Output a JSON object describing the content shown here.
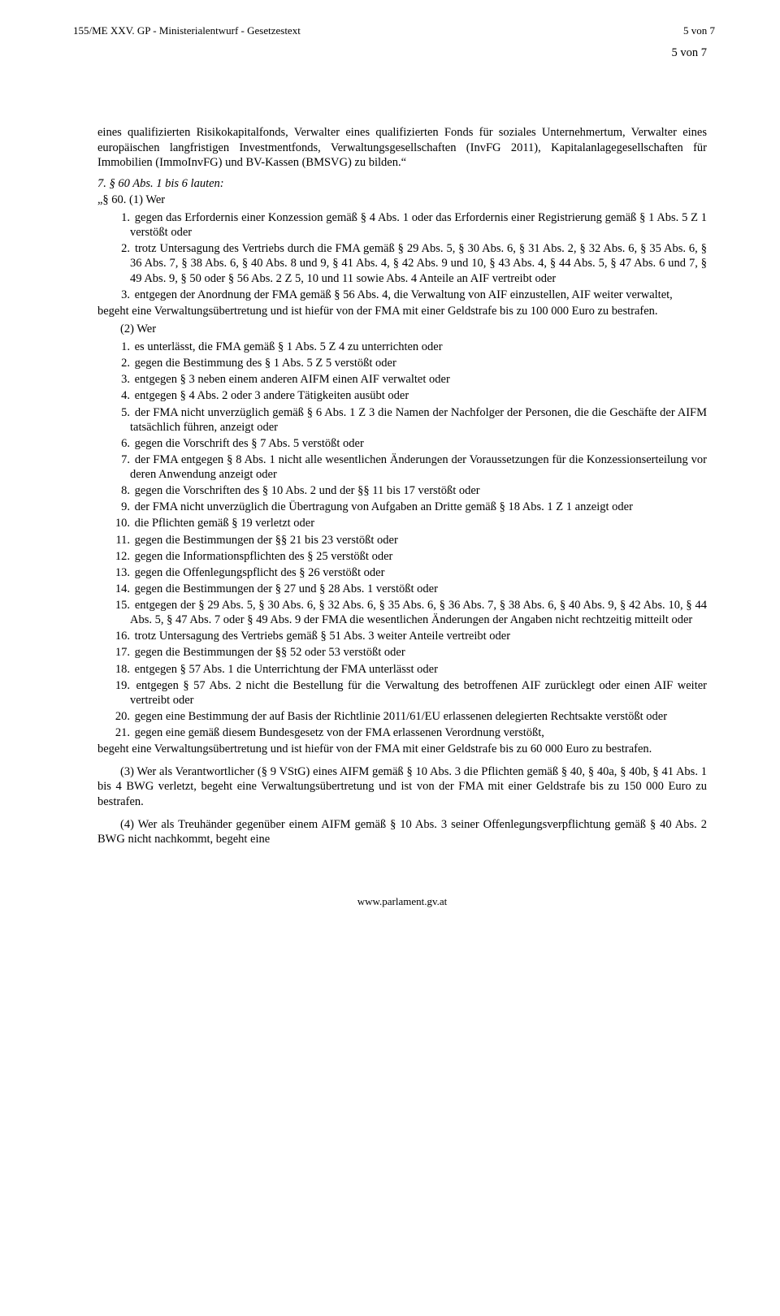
{
  "header": {
    "left": "155/ME XXV. GP - Ministerialentwurf - Gesetzestext",
    "right": "5 von 7",
    "sub": "5 von 7"
  },
  "intro": "eines qualifizierten Risikokapitalfonds, Verwalter eines qualifizierten Fonds für soziales Unternehmertum, Verwalter eines europäischen langfristigen Investmentfonds, Verwaltungsgesellschaften (InvFG 2011), Kapitalanlagegesellschaften für Immobilien (ImmoInvFG) und BV-Kassen (BMSVG) zu bilden.“",
  "s7": {
    "lead": "7. § 60 Abs. 1 bis 6 lauten:",
    "head": "„§ 60. (1) Wer"
  },
  "list1": [
    {
      "n": "1.",
      "t": "gegen das Erfordernis einer Konzession gemäß § 4 Abs. 1 oder das Erfordernis einer Registrierung gemäß § 1 Abs. 5 Z 1 verstößt oder"
    },
    {
      "n": "2.",
      "t": "trotz Untersagung des Vertriebs durch die FMA gemäß § 29 Abs. 5, § 30 Abs. 6, § 31 Abs. 2, § 32 Abs. 6, § 35 Abs. 6, § 36 Abs. 7, § 38 Abs. 6, § 40 Abs. 8 und 9, § 41 Abs. 4, § 42 Abs. 9 und 10, § 43 Abs. 4, § 44 Abs. 5, § 47 Abs. 6 und 7, § 49 Abs. 9, § 50 oder § 56 Abs. 2 Z 5, 10 und 11 sowie Abs. 4 Anteile an AIF vertreibt oder"
    },
    {
      "n": "3.",
      "t": "entgegen der Anordnung der FMA gemäß § 56 Abs. 4, die Verwaltung von AIF einzustellen, AIF weiter verwaltet,"
    }
  ],
  "tail1": "begeht eine Verwaltungsübertretung und ist hiefür von der FMA mit einer Geldstrafe bis zu 100 000 Euro zu bestrafen.",
  "h2": "(2) Wer",
  "list2": [
    {
      "n": "1.",
      "t": "es unterlässt, die FMA gemäß § 1 Abs. 5 Z 4 zu unterrichten oder"
    },
    {
      "n": "2.",
      "t": "gegen die Bestimmung des § 1 Abs. 5 Z 5 verstößt oder"
    },
    {
      "n": "3.",
      "t": "entgegen § 3 neben einem anderen AIFM einen AIF verwaltet oder"
    },
    {
      "n": "4.",
      "t": "entgegen § 4 Abs. 2 oder 3 andere Tätigkeiten ausübt oder"
    },
    {
      "n": "5.",
      "t": "der FMA nicht unverzüglich gemäß § 6 Abs. 1 Z 3 die Namen der Nachfolger der Personen, die die Geschäfte der AIFM tatsächlich führen, anzeigt oder"
    },
    {
      "n": "6.",
      "t": "gegen die Vorschrift des § 7 Abs. 5 verstößt oder"
    },
    {
      "n": "7.",
      "t": "der FMA entgegen § 8 Abs. 1 nicht alle wesentlichen Änderungen der Voraussetzungen für die Konzessionserteilung vor deren Anwendung anzeigt oder"
    },
    {
      "n": "8.",
      "t": "gegen die Vorschriften des § 10 Abs. 2 und der §§ 11 bis 17 verstößt oder"
    },
    {
      "n": "9.",
      "t": "der FMA nicht unverzüglich die Übertragung von Aufgaben an Dritte gemäß § 18 Abs. 1 Z 1 anzeigt oder"
    },
    {
      "n": "10.",
      "t": "die Pflichten gemäß § 19 verletzt oder"
    },
    {
      "n": "11.",
      "t": "gegen die Bestimmungen der §§ 21 bis 23 verstößt oder"
    },
    {
      "n": "12.",
      "t": "gegen die Informationspflichten des § 25 verstößt oder"
    },
    {
      "n": "13.",
      "t": "gegen die Offenlegungspflicht des § 26 verstößt oder"
    },
    {
      "n": "14.",
      "t": "gegen die Bestimmungen der § 27 und § 28 Abs. 1 verstößt oder"
    },
    {
      "n": "15.",
      "t": "entgegen der § 29 Abs. 5, § 30 Abs. 6, § 32 Abs. 6, § 35 Abs. 6, § 36 Abs. 7, § 38 Abs. 6, § 40 Abs. 9, § 42 Abs. 10, § 44 Abs. 5, § 47 Abs. 7 oder § 49 Abs. 9 der FMA die wesentlichen Änderungen der Angaben nicht rechtzeitig mitteilt oder"
    },
    {
      "n": "16.",
      "t": "trotz Untersagung des Vertriebs gemäß § 51 Abs. 3 weiter Anteile vertreibt oder"
    },
    {
      "n": "17.",
      "t": "gegen die Bestimmungen der §§ 52 oder 53 verstößt oder"
    },
    {
      "n": "18.",
      "t": "entgegen § 57 Abs. 1 die Unterrichtung der FMA unterlässt oder"
    },
    {
      "n": "19.",
      "t": "entgegen § 57 Abs. 2 nicht die Bestellung für die Verwaltung des betroffenen AIF zurücklegt oder einen AIF weiter vertreibt oder"
    },
    {
      "n": "20.",
      "t": "gegen eine Bestimmung der auf Basis der Richtlinie 2011/61/EU erlassenen delegierten Rechtsakte verstößt oder"
    },
    {
      "n": "21.",
      "t": "gegen eine gemäß diesem Bundesgesetz von der FMA erlassenen Verordnung verstößt,"
    }
  ],
  "tail2": "begeht eine Verwaltungsübertretung und ist hiefür von der FMA mit einer Geldstrafe bis zu 60 000 Euro zu bestrafen.",
  "p3": "(3) Wer als Verantwortlicher (§ 9 VStG) eines AIFM gemäß § 10 Abs. 3 die Pflichten gemäß § 40, § 40a, § 40b, § 41 Abs. 1 bis 4 BWG verletzt, begeht eine Verwaltungsübertretung und ist von der FMA mit einer Geldstrafe bis zu 150 000 Euro zu bestrafen.",
  "p4": "(4) Wer als Treuhänder gegenüber einem AIFM gemäß § 10 Abs. 3 seiner Offenlegungsverpflichtung gemäß § 40 Abs. 2 BWG nicht nachkommt, begeht eine",
  "footer": "www.parlament.gv.at"
}
